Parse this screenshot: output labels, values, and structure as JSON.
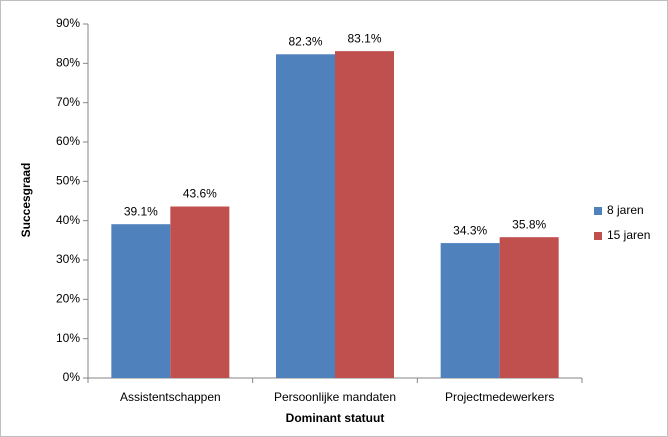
{
  "chart_data": {
    "type": "bar",
    "xlabel": "Dominant statuut",
    "ylabel": "Succesgraad",
    "categories": [
      "Assistentschappen",
      "Persoonlijke mandaten",
      "Projectmedewerkers"
    ],
    "series": [
      {
        "name": "8 jaren",
        "color": "#4f81bd",
        "values": [
          39.1,
          82.3,
          34.3
        ],
        "value_labels": [
          "39.1%",
          "82.3%",
          "34.3%"
        ]
      },
      {
        "name": "15 jaren",
        "color": "#c0504d",
        "values": [
          43.6,
          83.1,
          35.8
        ],
        "value_labels": [
          "43.6%",
          "83.1%",
          "35.8%"
        ]
      }
    ],
    "ylim": [
      0,
      90
    ],
    "yticks": [
      {
        "value": 0,
        "label": "0%"
      },
      {
        "value": 10,
        "label": "10%"
      },
      {
        "value": 20,
        "label": "20%"
      },
      {
        "value": 30,
        "label": "30%"
      },
      {
        "value": 40,
        "label": "40%"
      },
      {
        "value": 50,
        "label": "50%"
      },
      {
        "value": 60,
        "label": "60%"
      },
      {
        "value": 70,
        "label": "70%"
      },
      {
        "value": 80,
        "label": "80%"
      },
      {
        "value": 90,
        "label": "90%"
      }
    ],
    "grid": false,
    "legend": "right"
  }
}
